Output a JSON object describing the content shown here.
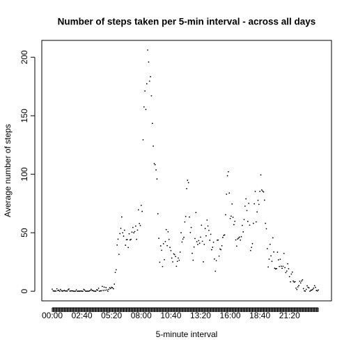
{
  "chart_data": {
    "type": "scatter",
    "title": "Number of steps taken per 5-min interval - across all days",
    "x_label": "5-minute interval",
    "y_label": "Average number of steps",
    "color": "#000000",
    "ylim": [
      -8.24,
      214.41
    ],
    "yticks": [
      0,
      50,
      100,
      150,
      200
    ],
    "categories": [
      "00:00",
      null,
      null,
      null,
      null,
      null,
      null,
      null,
      null,
      null,
      null,
      null,
      null,
      null,
      null,
      null,
      null,
      null,
      null,
      null,
      null,
      null,
      null,
      null,
      null,
      null,
      null,
      null,
      null,
      null,
      null,
      null,
      "02:40",
      null,
      null,
      null,
      null,
      null,
      null,
      null,
      null,
      null,
      null,
      null,
      null,
      null,
      null,
      null,
      null,
      null,
      null,
      null,
      null,
      null,
      null,
      null,
      null,
      null,
      null,
      null,
      null,
      null,
      null,
      null,
      "05:20",
      null,
      null,
      null,
      null,
      null,
      null,
      null,
      null,
      null,
      null,
      null,
      null,
      null,
      null,
      null,
      null,
      null,
      null,
      null,
      null,
      null,
      null,
      null,
      null,
      null,
      null,
      null,
      null,
      null,
      null,
      null,
      "08:00",
      null,
      null,
      null,
      null,
      null,
      null,
      null,
      null,
      null,
      null,
      null,
      null,
      null,
      null,
      null,
      null,
      null,
      null,
      null,
      null,
      null,
      null,
      null,
      null,
      null,
      null,
      null,
      null,
      null,
      null,
      null,
      "10:40",
      null,
      null,
      null,
      null,
      null,
      null,
      null,
      null,
      null,
      null,
      null,
      null,
      null,
      null,
      null,
      null,
      null,
      null,
      null,
      null,
      null,
      null,
      null,
      null,
      null,
      null,
      null,
      null,
      null,
      null,
      null,
      "13:20",
      null,
      null,
      null,
      null,
      null,
      null,
      null,
      null,
      null,
      null,
      null,
      null,
      null,
      null,
      null,
      null,
      null,
      null,
      null,
      null,
      null,
      null,
      null,
      null,
      null,
      null,
      null,
      null,
      null,
      null,
      null,
      "16:00",
      null,
      null,
      null,
      null,
      null,
      null,
      null,
      null,
      null,
      null,
      null,
      null,
      null,
      null,
      null,
      null,
      null,
      null,
      null,
      null,
      null,
      null,
      null,
      null,
      null,
      null,
      null,
      null,
      null,
      null,
      null,
      "18:40",
      null,
      null,
      null,
      null,
      null,
      null,
      null,
      null,
      null,
      null,
      null,
      null,
      null,
      null,
      null,
      null,
      null,
      null,
      null,
      null,
      null,
      null,
      null,
      null,
      null,
      null,
      null,
      null,
      null,
      null,
      null,
      "21:20",
      null,
      null,
      null,
      null,
      null,
      null,
      null,
      null,
      null,
      null,
      null,
      null,
      null,
      null,
      null,
      null,
      null,
      null,
      null,
      null,
      null,
      null,
      null,
      null,
      null,
      null,
      null,
      null,
      null,
      null,
      null
    ],
    "values": [
      1.72,
      0.34,
      0.13,
      0.15,
      0.08,
      2.09,
      0.53,
      0.87,
      0,
      1.47,
      0.3,
      0.13,
      0.32,
      0.68,
      0.15,
      0.34,
      0,
      1.11,
      1.83,
      0.17,
      0.17,
      0.38,
      0.26,
      0,
      0,
      0,
      1.13,
      0,
      0,
      0.13,
      0,
      0.23,
      0,
      0,
      1.55,
      0.94,
      0,
      0,
      0,
      0,
      0.21,
      0.62,
      1.62,
      0.58,
      0.49,
      0.08,
      0,
      0,
      1.19,
      0.94,
      2.57,
      0,
      0.34,
      0.36,
      4.11,
      0.66,
      3.49,
      0.83,
      3.11,
      1.11,
      0,
      1.57,
      3,
      2.25,
      3.32,
      2.96,
      2.09,
      6.06,
      16.02,
      18.34,
      39.45,
      44.49,
      31.49,
      49.26,
      53.77,
      63.45,
      49.96,
      47.08,
      52.15,
      39.34,
      44.02,
      44.17,
      37.36,
      49.04,
      43.81,
      44.38,
      50.51,
      54.51,
      49.92,
      50.98,
      55.68,
      44.32,
      52.26,
      69.55,
      57.85,
      56.15,
      73.38,
      68.21,
      129.43,
      157.53,
      171.15,
      155.4,
      177.3,
      206.17,
      195.92,
      179.57,
      183.4,
      167.02,
      143.45,
      124.04,
      109.11,
      108.11,
      103.72,
      95.97,
      66.21,
      45.23,
      24.79,
      38.75,
      34.98,
      21.06,
      40.57,
      26.98,
      42.42,
      52.66,
      38.92,
      50.79,
      44.28,
      37.42,
      34.7,
      28.34,
      25.09,
      31.94,
      31.36,
      29.68,
      21.32,
      25.55,
      28.38,
      26.47,
      33.43,
      49.98,
      42.04,
      44.6,
      46.04,
      59.19,
      63.87,
      87.7,
      94.85,
      92.77,
      63.4,
      50.17,
      54.47,
      32.42,
      26.53,
      37.74,
      45.06,
      67.28,
      42.34,
      39.88,
      43.26,
      40.98,
      46.25,
      56.43,
      42.75,
      25.13,
      39.96,
      53.55,
      47.32,
      60.81,
      55.75,
      51.96,
      43.58,
      48.7,
      35.47,
      37.55,
      41.85,
      27.51,
      17.11,
      26.08,
      43.62,
      43.77,
      30.02,
      36.08,
      35.49,
      38.85,
      45.96,
      47.75,
      48.13,
      65.32,
      82.91,
      98.66,
      102.11,
      83.96,
      62.13,
      64.13,
      74.55,
      63.17,
      56.91,
      59.77,
      43.87,
      38.57,
      44.66,
      45.45,
      46.21,
      43.68,
      46.62,
      56.3,
      50.72,
      61.23,
      72.72,
      78.94,
      68.94,
      59.66,
      75.09,
      56.51,
      34.77,
      37.45,
      40.68,
      58.02,
      74.7,
      85.32,
      59.26,
      67.77,
      77.7,
      74.25,
      85.34,
      99.45,
      86.58,
      85.6,
      84.87,
      77.83,
      58.04,
      53.36,
      36.32,
      20.72,
      27.4,
      40.02,
      30.21,
      25.55,
      45.66,
      33.53,
      19.62,
      19.02,
      19.34,
      33.34,
      26.81,
      21.17,
      27.3,
      21.34,
      19.55,
      21.32,
      32.3,
      20.15,
      15.94,
      17.23,
      23.45,
      19.25,
      12.45,
      8.02,
      14.66,
      16.3,
      8.68,
      7.79,
      8.13,
      2.62,
      1.45,
      3.68,
      4.81,
      8.51,
      7.08,
      8.7,
      9.75,
      2.21,
      0.32,
      0.11,
      1.6,
      4.6,
      3.3,
      2.85,
      0,
      0.83,
      0.96,
      1.58,
      2.6,
      4.7,
      3.3,
      0.64,
      0.23,
      1.08
    ]
  }
}
